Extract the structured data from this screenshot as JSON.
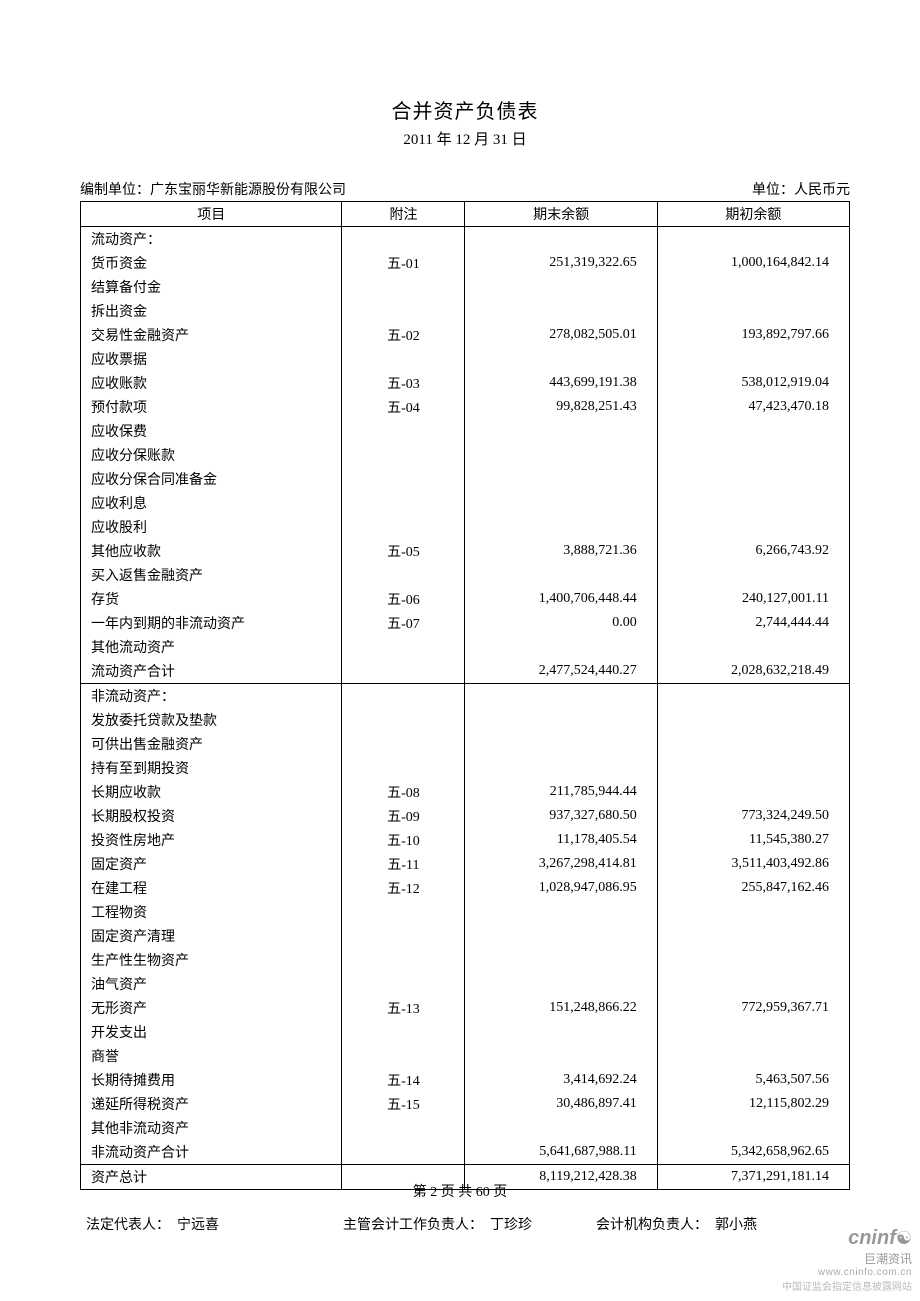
{
  "title": "合并资产负债表",
  "subtitle": "2011 年 12 月 31 日",
  "meta": {
    "prepared_by_label": "编制单位：",
    "prepared_by": "广东宝丽华新能源股份有限公司",
    "unit_label": "单位：",
    "unit": "人民币元"
  },
  "columns": [
    "项目",
    "附注",
    "期末余额",
    "期初余额"
  ],
  "rows": [
    {
      "name": "流动资产：",
      "note": "",
      "end": "",
      "beg": "",
      "top": true
    },
    {
      "name": "货币资金",
      "note": "五-01",
      "end": "251,319,322.65",
      "beg": "1,000,164,842.14"
    },
    {
      "name": "结算备付金",
      "note": "",
      "end": "",
      "beg": ""
    },
    {
      "name": "拆出资金",
      "note": "",
      "end": "",
      "beg": ""
    },
    {
      "name": "交易性金融资产",
      "note": "五-02",
      "end": "278,082,505.01",
      "beg": "193,892,797.66"
    },
    {
      "name": "应收票据",
      "note": "",
      "end": "",
      "beg": ""
    },
    {
      "name": "应收账款",
      "note": "五-03",
      "end": "443,699,191.38",
      "beg": "538,012,919.04"
    },
    {
      "name": "预付款项",
      "note": "五-04",
      "end": "99,828,251.43",
      "beg": "47,423,470.18"
    },
    {
      "name": "应收保费",
      "note": "",
      "end": "",
      "beg": ""
    },
    {
      "name": "应收分保账款",
      "note": "",
      "end": "",
      "beg": ""
    },
    {
      "name": "应收分保合同准备金",
      "note": "",
      "end": "",
      "beg": ""
    },
    {
      "name": "应收利息",
      "note": "",
      "end": "",
      "beg": ""
    },
    {
      "name": "应收股利",
      "note": "",
      "end": "",
      "beg": ""
    },
    {
      "name": "其他应收款",
      "note": "五-05",
      "end": "3,888,721.36",
      "beg": "6,266,743.92"
    },
    {
      "name": "买入返售金融资产",
      "note": "",
      "end": "",
      "beg": ""
    },
    {
      "name": "存货",
      "note": "五-06",
      "end": "1,400,706,448.44",
      "beg": "240,127,001.11"
    },
    {
      "name": "一年内到期的非流动资产",
      "note": "五-07",
      "end": "0.00",
      "beg": "2,744,444.44"
    },
    {
      "name": "其他流动资产",
      "note": "",
      "end": "",
      "beg": ""
    },
    {
      "name": "流动资产合计",
      "note": "",
      "end": "2,477,524,440.27",
      "beg": "2,028,632,218.49",
      "bottom": true
    },
    {
      "name": "非流动资产：",
      "note": "",
      "end": "",
      "beg": "",
      "top": true
    },
    {
      "name": "发放委托贷款及垫款",
      "note": "",
      "end": "",
      "beg": ""
    },
    {
      "name": "可供出售金融资产",
      "note": "",
      "end": "",
      "beg": ""
    },
    {
      "name": "持有至到期投资",
      "note": "",
      "end": "",
      "beg": ""
    },
    {
      "name": "长期应收款",
      "note": "五-08",
      "end": "211,785,944.44",
      "beg": ""
    },
    {
      "name": "长期股权投资",
      "note": "五-09",
      "end": "937,327,680.50",
      "beg": "773,324,249.50"
    },
    {
      "name": "投资性房地产",
      "note": "五-10",
      "end": "11,178,405.54",
      "beg": "11,545,380.27"
    },
    {
      "name": "固定资产",
      "note": "五-11",
      "end": "3,267,298,414.81",
      "beg": "3,511,403,492.86"
    },
    {
      "name": "在建工程",
      "note": "五-12",
      "end": "1,028,947,086.95",
      "beg": "255,847,162.46"
    },
    {
      "name": "工程物资",
      "note": "",
      "end": "",
      "beg": ""
    },
    {
      "name": "固定资产清理",
      "note": "",
      "end": "",
      "beg": ""
    },
    {
      "name": "生产性生物资产",
      "note": "",
      "end": "",
      "beg": ""
    },
    {
      "name": "油气资产",
      "note": "",
      "end": "",
      "beg": ""
    },
    {
      "name": "无形资产",
      "note": "五-13",
      "end": "151,248,866.22",
      "beg": "772,959,367.71"
    },
    {
      "name": "开发支出",
      "note": "",
      "end": "",
      "beg": ""
    },
    {
      "name": "商誉",
      "note": "",
      "end": "",
      "beg": ""
    },
    {
      "name": "长期待摊费用",
      "note": "五-14",
      "end": "3,414,692.24",
      "beg": "5,463,507.56"
    },
    {
      "name": "递延所得税资产",
      "note": "五-15",
      "end": "30,486,897.41",
      "beg": "12,115,802.29"
    },
    {
      "name": "其他非流动资产",
      "note": "",
      "end": "",
      "beg": ""
    },
    {
      "name": "非流动资产合计",
      "note": "",
      "end": "5,641,687,988.11",
      "beg": "5,342,658,962.65",
      "bottom": true
    },
    {
      "name": "资产总计",
      "note": "",
      "end": "8,119,212,428.38",
      "beg": "7,371,291,181.14",
      "top": true,
      "bottom": true
    }
  ],
  "signatures": {
    "s1_label": "法定代表人：",
    "s1_name": "宁远喜",
    "s2_label": "主管会计工作负责人：",
    "s2_name": "丁珍珍",
    "s3_label": "会计机构负责人：",
    "s3_name": "郭小燕"
  },
  "pager": "第 2 页 共 60 页",
  "watermark": {
    "brand": "cninf",
    "cn": "巨潮资讯",
    "url": "www.cninfo.com.cn",
    "desc": "中国证监会指定信息披露网站"
  }
}
